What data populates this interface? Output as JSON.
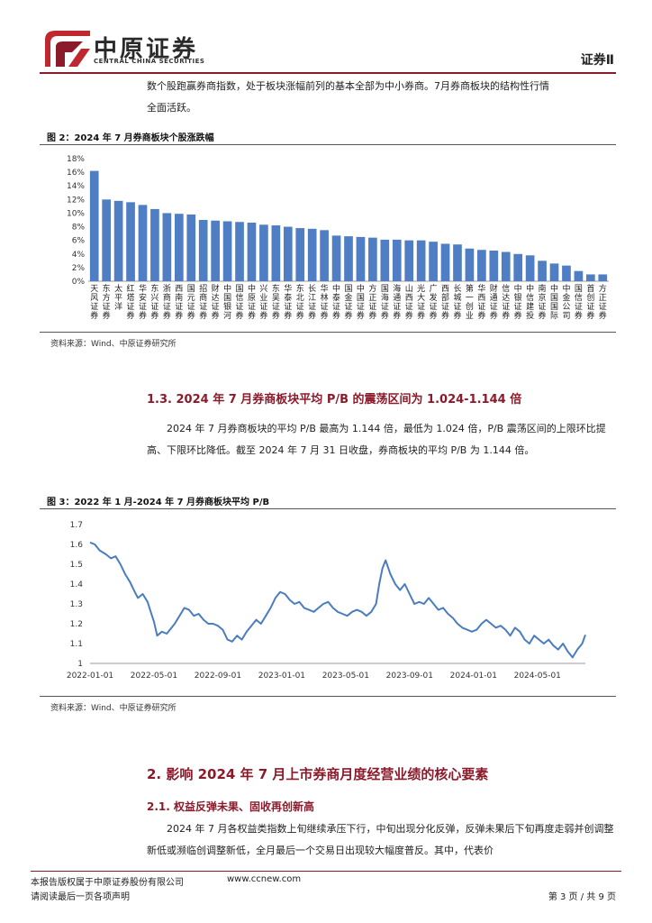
{
  "header": {
    "brand_cn": "中原证券",
    "brand_en": "CENTRAL CHINA SECURITIES",
    "section": "证券Ⅱ",
    "colors": {
      "brand": "#8b1a2b",
      "logo_red": "#c0282f"
    }
  },
  "paragraphs": {
    "p1_line1": "数个股跑赢券商指数，处于板块涨幅前列的基本全部为中小券商。7月券商板块的结构性行情",
    "p1_line2": "全面活跃。",
    "p2": "2024 年 7 月券商板块的平均 P/B 最高为 1.144 倍，最低为 1.024 倍，P/B 震荡区间的上限环比提高、下限环比降低。截至 2024 年 7 月 31 日收盘，券商板块的平均 P/B 为 1.144 倍。",
    "p3": "2024 年 7 月各权益类指数上旬继续承压下行，中旬出现分化反弹，反弹未果后下旬再度走弱并创调整新低或濒临创调整新低，全月最后一个交易日出现较大幅度普反。其中，代表价"
  },
  "figure2": {
    "title": "图 2：2024 年 7 月券商板块个股涨跌幅",
    "source": "资料来源：Wind、中原证券研究所"
  },
  "figure3": {
    "title": "图 3：2022 年 1 月-2024 年 7 月券商板块平均 P/B",
    "source": "资料来源：Wind、中原证券研究所"
  },
  "headings": {
    "h_1_3": "1.3.  2024 年 7 月券商板块平均 P/B 的震荡区间为 1.024-1.144 倍",
    "h_2": "2. 影响 2024 年 7 月上市券商月度经营业绩的核心要素",
    "h_2_1": "2.1. 权益反弹未果、固收再创新高"
  },
  "footer": {
    "copyright": "本报告版权属于中原证券股份有限公司",
    "website": "www.ccnew.com",
    "disclaimer": "请阅读最后一页各项声明",
    "page": "第 3 页 / 共 9 页"
  },
  "chart_data": [
    {
      "type": "bar",
      "title": "图 2：2024 年 7 月券商板块个股涨跌幅",
      "categories": [
        "天风证券",
        "东方证券",
        "太平洋",
        "红塔证券",
        "华安证券",
        "东兴证券",
        "浙商证券",
        "西南证券",
        "国元证券",
        "招商证券",
        "财达证券",
        "中国银河",
        "国信证券",
        "中原证券",
        "兴业证券",
        "东吴证券",
        "华泰证券",
        "东北证券",
        "长江证券",
        "华林证券",
        "中泰证券",
        "国金证券",
        "中国证券",
        "方正证券",
        "国海证券",
        "海通证券",
        "山西证券",
        "光大证券",
        "广发证券",
        "西部证券",
        "长城证券",
        "第一创业",
        "华西证券",
        "财通证券",
        "信达证券",
        "中银证券",
        "中信建投",
        "南京证券",
        "中国国际",
        "中金公司",
        "国信证券",
        "首创证券",
        "方正证券"
      ],
      "values": [
        16.2,
        12.0,
        11.8,
        11.6,
        11.2,
        10.6,
        10.0,
        9.9,
        9.8,
        9.0,
        8.9,
        8.8,
        8.7,
        8.6,
        8.3,
        8.2,
        8.0,
        7.8,
        7.7,
        7.5,
        6.7,
        6.6,
        6.5,
        6.4,
        6.1,
        6.1,
        6.0,
        6.0,
        5.8,
        5.5,
        5.4,
        4.8,
        4.6,
        4.5,
        4.3,
        4.0,
        3.8,
        3.0,
        2.6,
        2.3,
        1.5,
        1.0,
        1.0
      ],
      "yticks": [
        "0%",
        "2%",
        "4%",
        "6%",
        "8%",
        "10%",
        "12%",
        "14%",
        "16%",
        "18%"
      ],
      "ylim": [
        0,
        18
      ],
      "color": "#4f7ec4",
      "legend": "none"
    },
    {
      "type": "line",
      "title": "图 3：2022 年 1 月-2024 年 7 月券商板块平均 P/B",
      "xticks": [
        "2022-01-01",
        "2022-05-01",
        "2022-09-01",
        "2023-01-01",
        "2023-05-01",
        "2023-09-01",
        "2024-01-01",
        "2024-05-01"
      ],
      "yticks": [
        "1",
        "1.1",
        "1.2",
        "1.3",
        "1.4",
        "1.5",
        "1.6",
        "1.7"
      ],
      "ylim": [
        1.0,
        1.7
      ],
      "x_range_months": [
        0,
        31
      ],
      "series": [
        {
          "name": "平均P/B",
          "color": "#4a7dbf",
          "points": [
            [
              0,
              1.61
            ],
            [
              0.3,
              1.6
            ],
            [
              0.6,
              1.57
            ],
            [
              1.0,
              1.55
            ],
            [
              1.3,
              1.53
            ],
            [
              1.6,
              1.54
            ],
            [
              1.9,
              1.5
            ],
            [
              2.2,
              1.45
            ],
            [
              2.5,
              1.41
            ],
            [
              2.8,
              1.36
            ],
            [
              3.0,
              1.33
            ],
            [
              3.3,
              1.35
            ],
            [
              3.6,
              1.31
            ],
            [
              3.8,
              1.26
            ],
            [
              4.0,
              1.21
            ],
            [
              4.2,
              1.14
            ],
            [
              4.5,
              1.16
            ],
            [
              4.8,
              1.15
            ],
            [
              5.0,
              1.17
            ],
            [
              5.3,
              1.2
            ],
            [
              5.6,
              1.24
            ],
            [
              5.9,
              1.28
            ],
            [
              6.2,
              1.27
            ],
            [
              6.5,
              1.24
            ],
            [
              6.8,
              1.25
            ],
            [
              7.1,
              1.22
            ],
            [
              7.4,
              1.2
            ],
            [
              7.7,
              1.2
            ],
            [
              8.0,
              1.19
            ],
            [
              8.3,
              1.17
            ],
            [
              8.6,
              1.12
            ],
            [
              8.9,
              1.11
            ],
            [
              9.2,
              1.14
            ],
            [
              9.5,
              1.12
            ],
            [
              9.8,
              1.16
            ],
            [
              10.1,
              1.19
            ],
            [
              10.4,
              1.22
            ],
            [
              10.7,
              1.2
            ],
            [
              11.0,
              1.24
            ],
            [
              11.3,
              1.28
            ],
            [
              11.6,
              1.33
            ],
            [
              11.9,
              1.36
            ],
            [
              12.2,
              1.35
            ],
            [
              12.5,
              1.32
            ],
            [
              12.8,
              1.3
            ],
            [
              13.1,
              1.31
            ],
            [
              13.4,
              1.28
            ],
            [
              13.7,
              1.27
            ],
            [
              14.0,
              1.26
            ],
            [
              14.3,
              1.28
            ],
            [
              14.6,
              1.3
            ],
            [
              14.9,
              1.31
            ],
            [
              15.2,
              1.28
            ],
            [
              15.5,
              1.26
            ],
            [
              15.8,
              1.25
            ],
            [
              16.1,
              1.24
            ],
            [
              16.4,
              1.26
            ],
            [
              16.7,
              1.27
            ],
            [
              17.0,
              1.26
            ],
            [
              17.3,
              1.24
            ],
            [
              17.6,
              1.26
            ],
            [
              17.9,
              1.3
            ],
            [
              18.1,
              1.4
            ],
            [
              18.3,
              1.48
            ],
            [
              18.5,
              1.52
            ],
            [
              18.8,
              1.45
            ],
            [
              19.1,
              1.4
            ],
            [
              19.4,
              1.37
            ],
            [
              19.7,
              1.4
            ],
            [
              20.0,
              1.35
            ],
            [
              20.3,
              1.3
            ],
            [
              20.6,
              1.31
            ],
            [
              20.9,
              1.3
            ],
            [
              21.2,
              1.33
            ],
            [
              21.5,
              1.3
            ],
            [
              21.8,
              1.27
            ],
            [
              22.1,
              1.28
            ],
            [
              22.4,
              1.25
            ],
            [
              22.7,
              1.23
            ],
            [
              23.0,
              1.2
            ],
            [
              23.3,
              1.18
            ],
            [
              23.6,
              1.17
            ],
            [
              23.9,
              1.16
            ],
            [
              24.2,
              1.17
            ],
            [
              24.5,
              1.2
            ],
            [
              24.8,
              1.22
            ],
            [
              25.1,
              1.2
            ],
            [
              25.4,
              1.18
            ],
            [
              25.7,
              1.19
            ],
            [
              26.0,
              1.17
            ],
            [
              26.3,
              1.14
            ],
            [
              26.6,
              1.18
            ],
            [
              26.9,
              1.16
            ],
            [
              27.2,
              1.12
            ],
            [
              27.5,
              1.1
            ],
            [
              27.8,
              1.14
            ],
            [
              28.1,
              1.12
            ],
            [
              28.4,
              1.1
            ],
            [
              28.7,
              1.12
            ],
            [
              29.0,
              1.09
            ],
            [
              29.3,
              1.07
            ],
            [
              29.6,
              1.1
            ],
            [
              29.9,
              1.06
            ],
            [
              30.2,
              1.03
            ],
            [
              30.5,
              1.07
            ],
            [
              30.8,
              1.1
            ],
            [
              31.0,
              1.144
            ]
          ]
        }
      ],
      "legend": "none"
    }
  ]
}
